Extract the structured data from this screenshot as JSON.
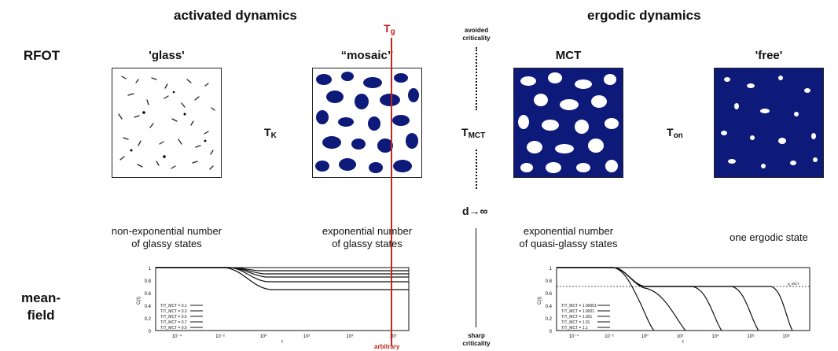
{
  "headers": {
    "activated": "activated dynamics",
    "ergodic": "ergodic dynamics"
  },
  "rows": {
    "rfot": "RFOT",
    "meanfield_1": "mean-",
    "meanfield_2": "field"
  },
  "panels": [
    {
      "title": "'glass'"
    },
    {
      "title": "“mosaic”"
    },
    {
      "title": "MCT"
    },
    {
      "title": "'free'"
    }
  ],
  "transitions": {
    "tk_main": "T",
    "tk_sub": "K",
    "tmct_main": "T",
    "tmct_sub": "MCT",
    "ton_main": "T",
    "ton_sub": "on"
  },
  "tg": {
    "main": "T",
    "sub": "g",
    "note": "arbitrary"
  },
  "center": {
    "avoided_1": "avoided",
    "avoided_2": "criticality",
    "dinf": "d→∞",
    "sharp_1": "sharp",
    "sharp_2": "criticality"
  },
  "descriptions": {
    "glass_1": "non-exponential number",
    "glass_2": "of glassy states",
    "mosaic_1": "exponential number",
    "mosaic_2": "of glassy states",
    "mct_1": "exponential number",
    "mct_2": "of quasi-glassy states",
    "free_1": "one ergodic state"
  },
  "plots": {
    "left": {
      "ylabel": "C(t)",
      "xlabel": "t",
      "yticks": [
        "1",
        "0.8",
        "0.6",
        "0.4",
        "0.2",
        "0"
      ],
      "xticks": [
        "10⁻⁴",
        "10⁻²",
        "10⁰",
        "10²",
        "10⁴",
        "10⁶"
      ],
      "legend": [
        "T/T_MCT = 0.1",
        "T/T_MCT = 0.3",
        "T/T_MCT = 0.5",
        "T/T_MCT = 0.7",
        "T/T_MCT = 0.9"
      ]
    },
    "right": {
      "ylabel": "C(t)",
      "xlabel": "t",
      "yticks": [
        "1",
        "0.8",
        "0.6",
        "0.4",
        "0.2",
        "0"
      ],
      "xticks": [
        "10⁻⁴",
        "10⁻²",
        "10⁰",
        "10²",
        "10⁴",
        "10⁶",
        "10⁸"
      ],
      "legend": [
        "T/T_MCT = 1.00001",
        "T/T_MCT = 1.0001",
        "T/T_MCT = 1.001",
        "T/T_MCT = 1.01",
        "T/T_MCT = 1.1"
      ],
      "dotted_label": "q_MCT"
    }
  },
  "colors": {
    "navy": "#0d1a7a",
    "red": "#c0261c"
  }
}
